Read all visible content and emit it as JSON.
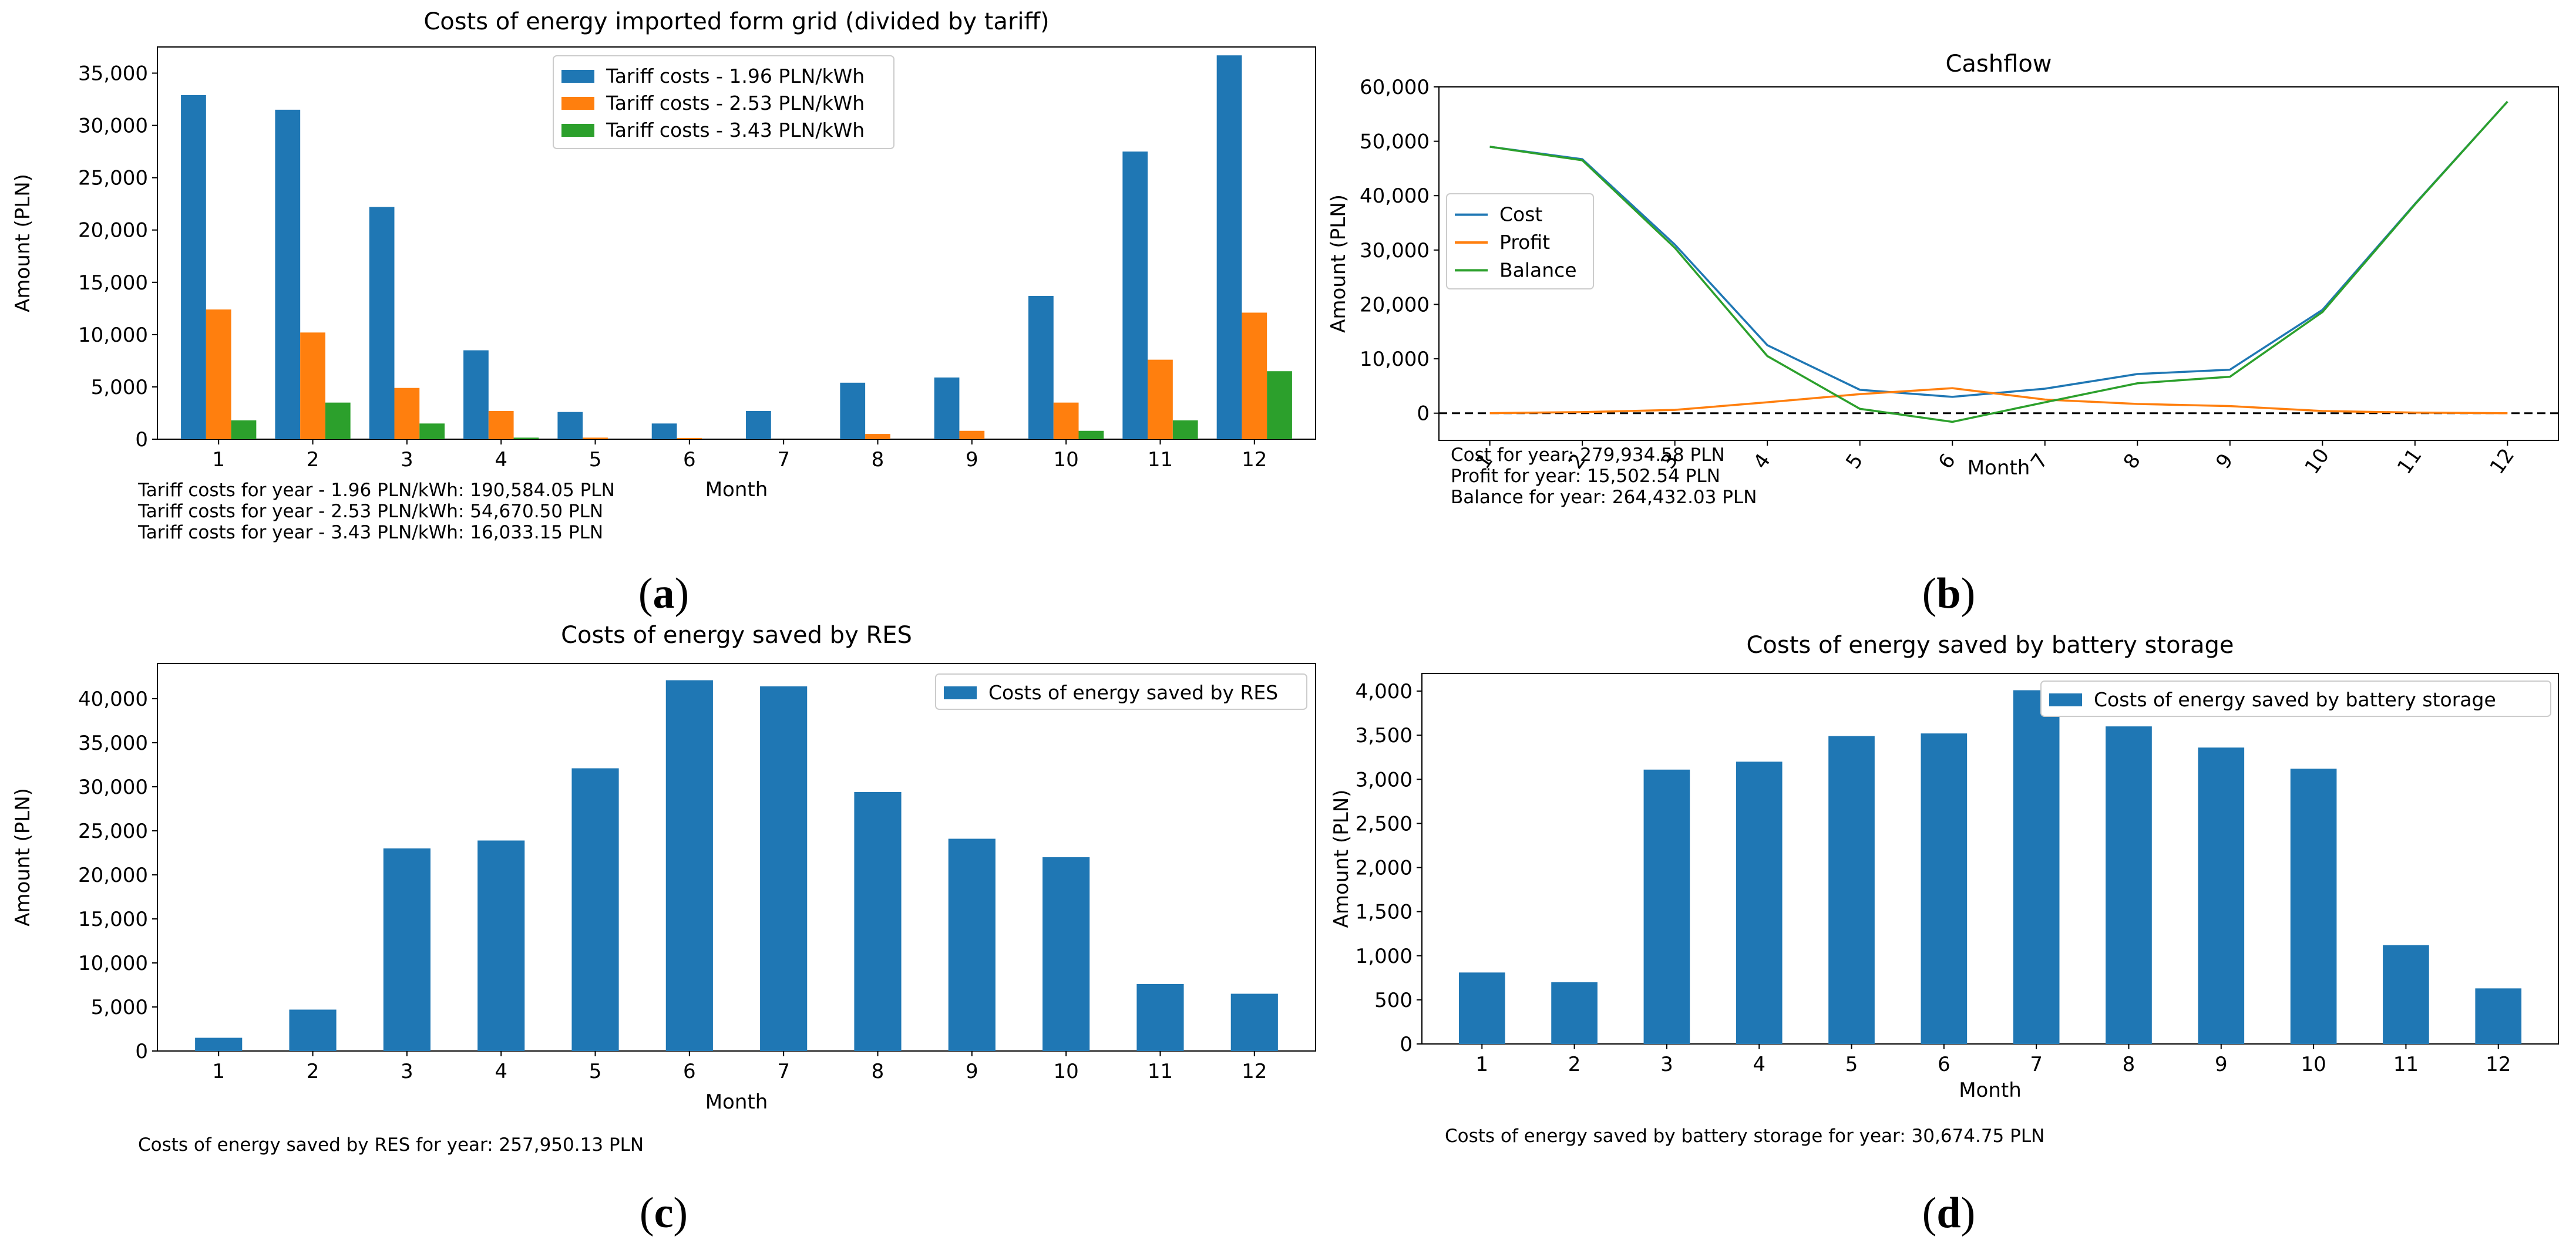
{
  "chart_data": [
    {
      "id": "a",
      "type": "bar",
      "title": "Costs of energy imported form grid (divided by tariff)",
      "xlabel": "Month",
      "ylabel": "Amount (PLN)",
      "categories": [
        "1",
        "2",
        "3",
        "4",
        "5",
        "6",
        "7",
        "8",
        "9",
        "10",
        "11",
        "12"
      ],
      "ylim": [
        0,
        37500
      ],
      "yticks": [
        0,
        5000,
        10000,
        15000,
        20000,
        25000,
        30000,
        35000
      ],
      "ytick_labels": [
        "0",
        "5,000",
        "10,000",
        "15,000",
        "20,000",
        "25,000",
        "30,000",
        "35,000"
      ],
      "series": [
        {
          "name": "Tariff costs - 1.96 PLN/kWh",
          "color": "#1f77b4",
          "values": [
            32900,
            31500,
            22200,
            8500,
            2600,
            1500,
            2700,
            5400,
            5900,
            13700,
            27500,
            36700
          ]
        },
        {
          "name": "Tariff costs - 2.53 PLN/kWh",
          "color": "#ff7f0e",
          "values": [
            12400,
            10200,
            4900,
            2700,
            150,
            120,
            0,
            500,
            800,
            3500,
            7600,
            12100
          ]
        },
        {
          "name": "Tariff costs - 3.43 PLN/kWh",
          "color": "#2ca02c",
          "values": [
            1800,
            3500,
            1500,
            150,
            0,
            0,
            0,
            0,
            0,
            800,
            1800,
            6500
          ]
        }
      ],
      "legend_position": "top-center",
      "notes": [
        "Tariff costs for year - 1.96 PLN/kWh: 190,584.05 PLN",
        "Tariff costs for year - 2.53 PLN/kWh: 54,670.50 PLN",
        "Tariff costs for year - 3.43 PLN/kWh: 16,033.15 PLN"
      ],
      "caption": "a"
    },
    {
      "id": "b",
      "type": "line",
      "title": "Cashflow",
      "xlabel": "Month",
      "ylabel": "Amount (PLN)",
      "categories": [
        "1",
        "2",
        "3",
        "4",
        "5",
        "6",
        "7",
        "8",
        "9",
        "10",
        "11",
        "12"
      ],
      "ylim": [
        -5000,
        60000
      ],
      "yticks": [
        0,
        10000,
        20000,
        30000,
        40000,
        50000,
        60000
      ],
      "ytick_labels": [
        "0",
        "10,000",
        "20,000",
        "30,000",
        "40,000",
        "50,000",
        "60,000"
      ],
      "series": [
        {
          "name": "Cost",
          "color": "#1f77b4",
          "values": [
            49000,
            46700,
            31000,
            12500,
            4300,
            3000,
            4500,
            7200,
            8000,
            19000,
            38500,
            57300
          ]
        },
        {
          "name": "Profit",
          "color": "#ff7f0e",
          "values": [
            0,
            200,
            600,
            2000,
            3500,
            4600,
            2500,
            1700,
            1300,
            400,
            100,
            0
          ]
        },
        {
          "name": "Balance",
          "color": "#2ca02c",
          "values": [
            49000,
            46500,
            30400,
            10500,
            800,
            -1600,
            2000,
            5500,
            6700,
            18600,
            38400,
            57300
          ]
        }
      ],
      "zero_line": true,
      "legend_position": "center-left",
      "notes": [
        "Cost for year: 279,934.58 PLN",
        "Profit for year: 15,502.54 PLN",
        "Balance for year: 264,432.03 PLN"
      ],
      "caption": "b"
    },
    {
      "id": "c",
      "type": "bar",
      "title": "Costs of energy saved by RES",
      "xlabel": "Month",
      "ylabel": "Amount (PLN)",
      "categories": [
        "1",
        "2",
        "3",
        "4",
        "5",
        "6",
        "7",
        "8",
        "9",
        "10",
        "11",
        "12"
      ],
      "ylim": [
        0,
        44000
      ],
      "yticks": [
        0,
        5000,
        10000,
        15000,
        20000,
        25000,
        30000,
        35000,
        40000
      ],
      "ytick_labels": [
        "0",
        "5,000",
        "10,000",
        "15,000",
        "20,000",
        "25,000",
        "30,000",
        "35,000",
        "40,000"
      ],
      "series": [
        {
          "name": "Costs of energy saved by RES",
          "color": "#1f77b4",
          "values": [
            1500,
            4700,
            23000,
            23900,
            32100,
            42100,
            41400,
            29400,
            24100,
            22000,
            7600,
            6500
          ]
        }
      ],
      "legend_position": "top-right",
      "notes": [
        "Costs of energy saved by RES for year: 257,950.13 PLN"
      ],
      "caption": "c"
    },
    {
      "id": "d",
      "type": "bar",
      "title": "Costs of energy saved by battery storage",
      "xlabel": "Month",
      "ylabel": "Amount (PLN)",
      "categories": [
        "1",
        "2",
        "3",
        "4",
        "5",
        "6",
        "7",
        "8",
        "9",
        "10",
        "11",
        "12"
      ],
      "ylim": [
        0,
        4200
      ],
      "yticks": [
        0,
        500,
        1000,
        1500,
        2000,
        2500,
        3000,
        3500,
        4000
      ],
      "ytick_labels": [
        "0",
        "500",
        "1,000",
        "1,500",
        "2,000",
        "2,500",
        "3,000",
        "3,500",
        "4,000"
      ],
      "series": [
        {
          "name": "Costs of energy saved by battery storage",
          "color": "#1f77b4",
          "values": [
            810,
            700,
            3110,
            3200,
            3490,
            3520,
            4010,
            3600,
            3360,
            3120,
            1120,
            630
          ]
        }
      ],
      "legend_position": "top-right",
      "notes": [
        "Costs of energy saved by battery storage for year: 30,674.75 PLN"
      ],
      "caption": "d"
    }
  ]
}
